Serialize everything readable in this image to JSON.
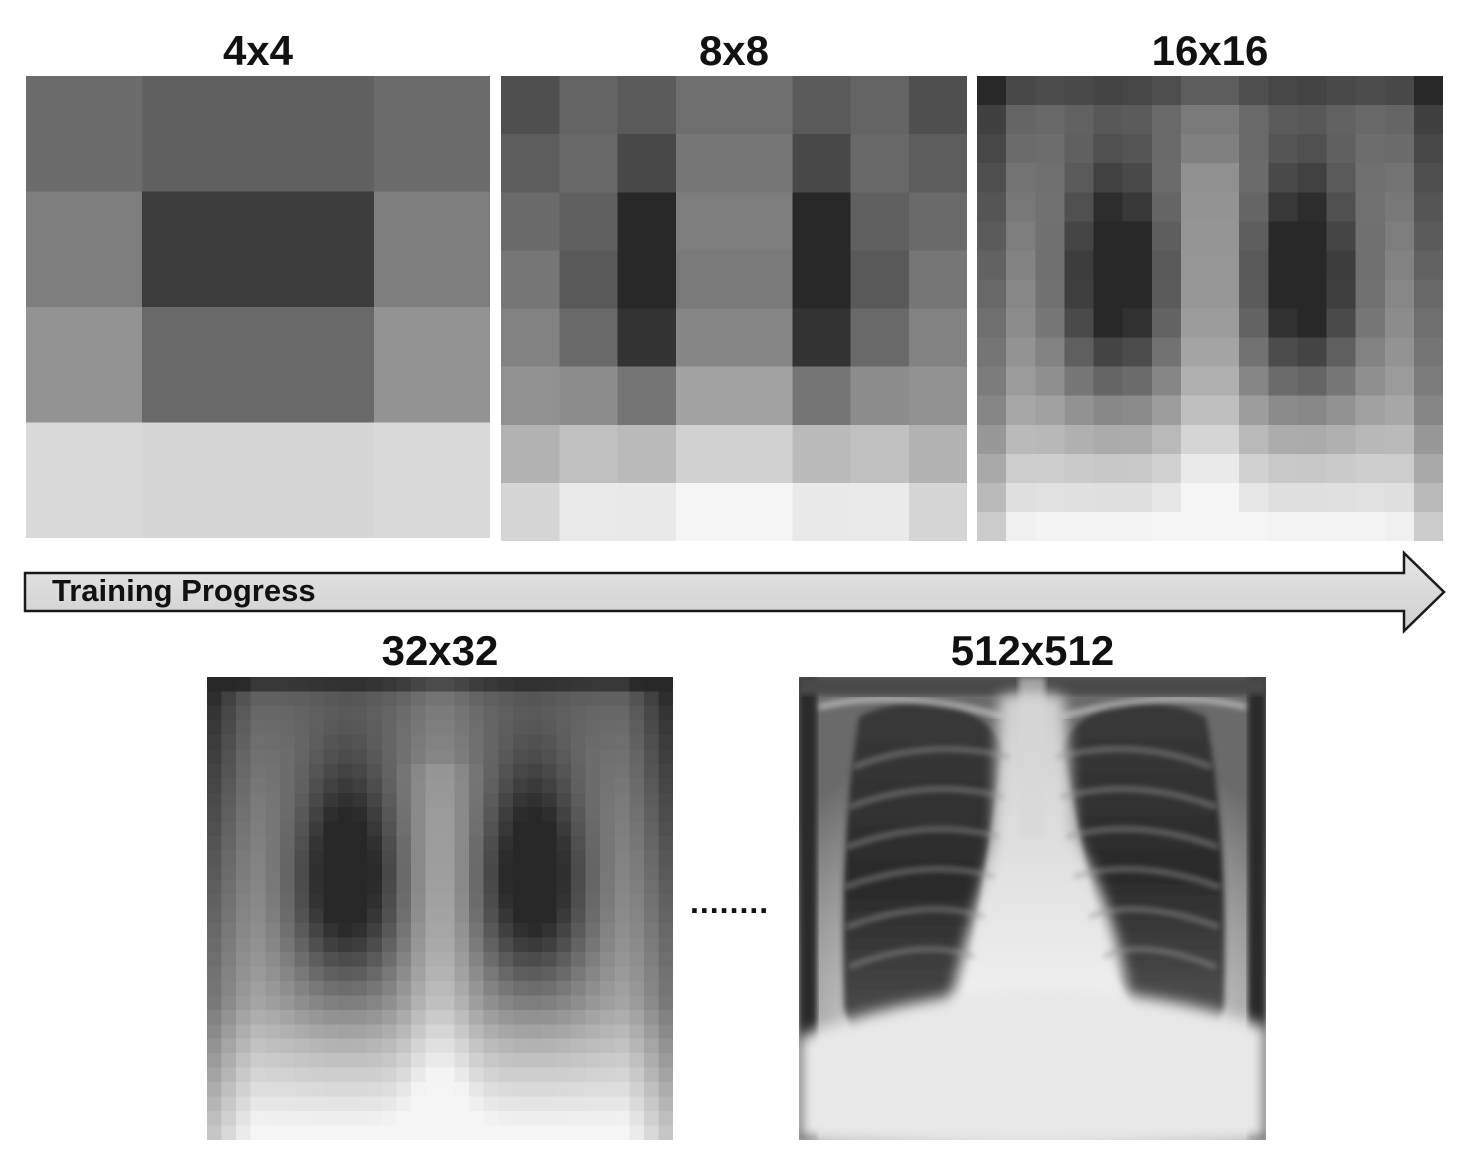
{
  "panels": {
    "p4": {
      "label": "4x4"
    },
    "p8": {
      "label": "8x8"
    },
    "p16": {
      "label": "16x16"
    },
    "p32": {
      "label": "32x32"
    },
    "p512": {
      "label": "512x512"
    }
  },
  "arrow": {
    "label": "Training Progress"
  },
  "ellipsis": "........"
}
